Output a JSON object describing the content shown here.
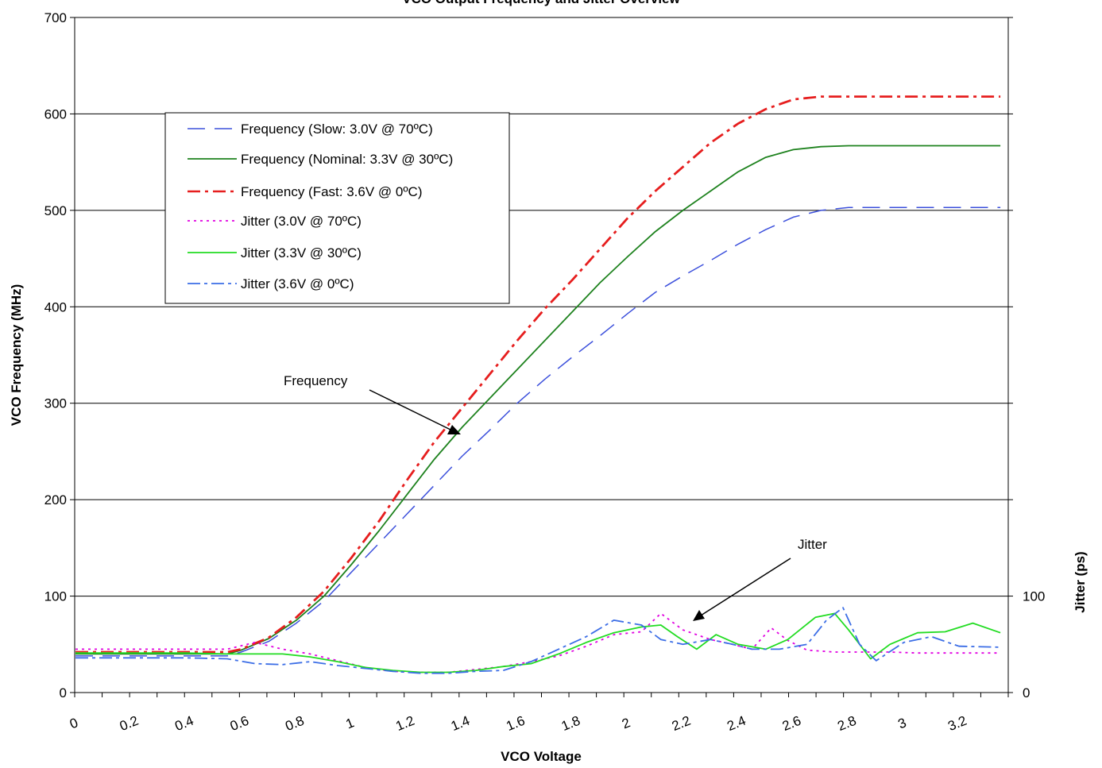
{
  "chart_data": {
    "type": "line",
    "title": "VCO Output Frequency and Jitter Overview",
    "xlabel": "VCO Voltage",
    "ylabel": "VCO Frequency (MHz)",
    "y2label": "Jitter (ps)",
    "xlim": [
      0,
      3.4
    ],
    "ylim": [
      0,
      700
    ],
    "y2lim": [
      0,
      700
    ],
    "xticks": [
      "0",
      "0.2",
      "0.4",
      "0.6",
      "0.8",
      "1",
      "1.2",
      "1.4",
      "1.6",
      "1.8",
      "2",
      "2.2",
      "2.4",
      "2.6",
      "2.8",
      "3",
      "3.2"
    ],
    "xtick_values": [
      0,
      0.2,
      0.4,
      0.6,
      0.8,
      1.0,
      1.2,
      1.4,
      1.6,
      1.8,
      2.0,
      2.2,
      2.4,
      2.6,
      2.8,
      3.0,
      3.2
    ],
    "yticks": [
      "0",
      "100",
      "200",
      "300",
      "400",
      "500",
      "600",
      "700"
    ],
    "ytick_values": [
      0,
      100,
      200,
      300,
      400,
      500,
      600,
      700
    ],
    "y2ticks": [
      "0",
      "100"
    ],
    "y2tick_values": [
      0,
      100
    ],
    "grid": true,
    "legend_position": "top-left",
    "series": [
      {
        "name": "Frequency (Slow: 3.0V @ 70ºC)",
        "axis": "left",
        "color": "#3c50dc",
        "dash": "22 12",
        "width": 1.5,
        "x": [
          0.0,
          0.2,
          0.4,
          0.55,
          0.6,
          0.7,
          0.8,
          0.9,
          1.0,
          1.1,
          1.2,
          1.3,
          1.4,
          1.5,
          1.6,
          1.7,
          1.8,
          1.9,
          2.0,
          2.1,
          2.2,
          2.3,
          2.4,
          2.5,
          2.6,
          2.7,
          2.8,
          2.9,
          3.0,
          3.1,
          3.2,
          3.35
        ],
        "values": [
          38,
          38,
          38,
          38,
          42,
          53,
          72,
          95,
          125,
          155,
          185,
          215,
          245,
          272,
          300,
          325,
          348,
          370,
          393,
          415,
          432,
          448,
          465,
          480,
          493,
          500,
          503,
          503,
          503,
          503,
          503,
          503
        ]
      },
      {
        "name": "Frequency (Nominal: 3.3V @ 30ºC)",
        "axis": "left",
        "color": "#1e821e",
        "dash": "",
        "width": 1.8,
        "x": [
          0.0,
          0.2,
          0.4,
          0.55,
          0.6,
          0.7,
          0.8,
          0.9,
          1.0,
          1.1,
          1.2,
          1.3,
          1.4,
          1.5,
          1.6,
          1.7,
          1.8,
          1.9,
          2.0,
          2.1,
          2.2,
          2.3,
          2.4,
          2.5,
          2.6,
          2.7,
          2.8,
          2.9,
          3.0,
          3.1,
          3.2,
          3.35
        ],
        "values": [
          40,
          40,
          40,
          40,
          44,
          56,
          75,
          100,
          133,
          168,
          205,
          242,
          275,
          305,
          335,
          365,
          395,
          425,
          452,
          478,
          500,
          520,
          540,
          555,
          563,
          566,
          567,
          567,
          567,
          567,
          567,
          567
        ]
      },
      {
        "name": "Frequency (Fast: 3.6V @ 0ºC)",
        "axis": "left",
        "color": "#e61e1e",
        "dash": "16 6 4 6",
        "width": 2.8,
        "x": [
          0.0,
          0.2,
          0.4,
          0.55,
          0.6,
          0.7,
          0.8,
          0.9,
          1.0,
          1.1,
          1.2,
          1.3,
          1.4,
          1.5,
          1.6,
          1.7,
          1.8,
          1.9,
          2.0,
          2.1,
          2.2,
          2.3,
          2.4,
          2.5,
          2.6,
          2.7,
          2.8,
          2.9,
          3.0,
          3.1,
          3.2,
          3.35
        ],
        "values": [
          42,
          42,
          42,
          42,
          45,
          57,
          78,
          105,
          140,
          178,
          220,
          260,
          295,
          330,
          365,
          398,
          428,
          460,
          492,
          520,
          545,
          570,
          590,
          605,
          615,
          618,
          618,
          618,
          618,
          618,
          618,
          618
        ]
      },
      {
        "name": "Jitter (3.0V @ 70ºC)",
        "axis": "right",
        "color": "#e100e1",
        "dash": "3 5",
        "width": 1.8,
        "x": [
          0.0,
          0.2,
          0.4,
          0.55,
          0.65,
          0.75,
          0.85,
          0.95,
          1.05,
          1.15,
          1.25,
          1.35,
          1.45,
          1.55,
          1.65,
          1.75,
          1.85,
          1.95,
          2.05,
          2.12,
          2.2,
          2.3,
          2.38,
          2.45,
          2.52,
          2.58,
          2.65,
          2.75,
          2.85,
          2.95,
          3.05,
          3.15,
          3.25,
          3.35
        ],
        "values": [
          45,
          45,
          45,
          45,
          52,
          45,
          40,
          33,
          26,
          22,
          21,
          21,
          24,
          27,
          32,
          38,
          48,
          60,
          63,
          82,
          65,
          55,
          50,
          45,
          67,
          54,
          44,
          42,
          42,
          42,
          41,
          41,
          41,
          41
        ]
      },
      {
        "name": "Jitter (3.3V @ 30ºC)",
        "axis": "right",
        "color": "#22dc22",
        "dash": "",
        "width": 1.8,
        "x": [
          0.0,
          0.2,
          0.4,
          0.55,
          0.65,
          0.75,
          0.85,
          0.95,
          1.05,
          1.15,
          1.25,
          1.35,
          1.45,
          1.55,
          1.65,
          1.75,
          1.85,
          1.95,
          2.05,
          2.12,
          2.18,
          2.25,
          2.32,
          2.4,
          2.5,
          2.58,
          2.68,
          2.75,
          2.8,
          2.88,
          2.95,
          3.05,
          3.15,
          3.25,
          3.35
        ],
        "values": [
          41,
          41,
          41,
          40,
          40,
          40,
          37,
          32,
          26,
          23,
          21,
          21,
          23,
          27,
          30,
          40,
          52,
          62,
          68,
          70,
          58,
          45,
          60,
          50,
          45,
          55,
          78,
          82,
          65,
          35,
          50,
          62,
          63,
          72,
          62
        ]
      },
      {
        "name": "Jitter (3.6V @ 0ºC)",
        "axis": "right",
        "color": "#3c6ee6",
        "dash": "16 5 4 5",
        "width": 1.8,
        "x": [
          0.0,
          0.2,
          0.4,
          0.55,
          0.65,
          0.75,
          0.85,
          0.95,
          1.05,
          1.15,
          1.25,
          1.35,
          1.45,
          1.55,
          1.65,
          1.75,
          1.85,
          1.95,
          2.05,
          2.12,
          2.2,
          2.3,
          2.38,
          2.45,
          2.55,
          2.65,
          2.72,
          2.78,
          2.84,
          2.9,
          3.0,
          3.1,
          3.2,
          3.35
        ],
        "values": [
          36,
          36,
          36,
          35,
          30,
          29,
          32,
          28,
          25,
          22,
          20,
          20,
          22,
          23,
          32,
          45,
          58,
          75,
          70,
          55,
          50,
          55,
          50,
          45,
          45,
          50,
          75,
          88,
          50,
          33,
          52,
          58,
          48,
          47
        ]
      }
    ],
    "annotations": [
      {
        "text": "Frequency",
        "x": 1.4,
        "y": 270
      },
      {
        "text": "Jitter",
        "x": 2.27,
        "y": 75
      }
    ]
  }
}
